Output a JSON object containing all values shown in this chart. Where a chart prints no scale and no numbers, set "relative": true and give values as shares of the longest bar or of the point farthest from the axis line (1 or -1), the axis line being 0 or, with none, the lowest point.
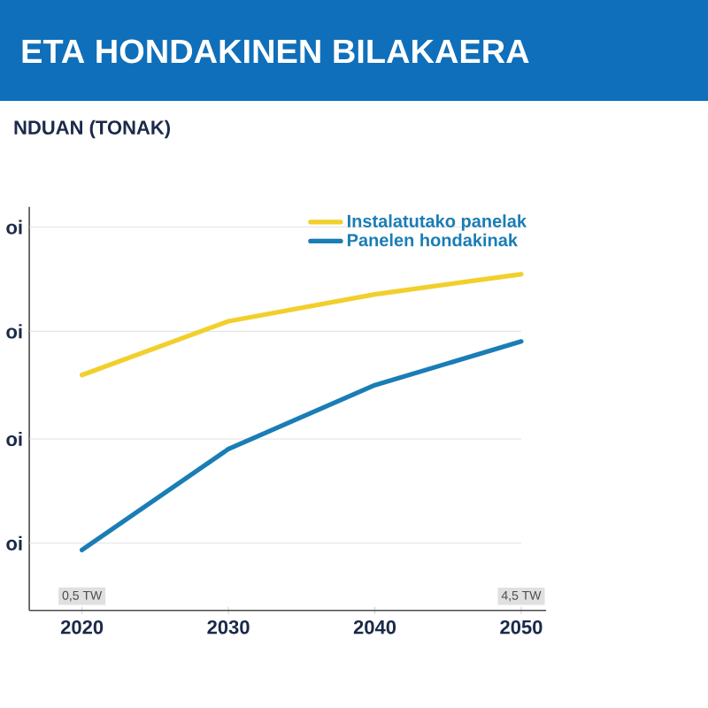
{
  "chart_data": {
    "type": "line",
    "title": "ETA HONDAKINEN BILAKAERA",
    "subtitle": "NDUAN (TONAK)",
    "relative": true,
    "categories": [
      "2020",
      "2030",
      "2040",
      "2050"
    ],
    "series": [
      {
        "name": "Instalatutako panelak",
        "color": "#f2cf2b",
        "values": [
          0.7,
          0.86,
          0.94,
          1
        ]
      },
      {
        "name": "Panelen hondakinak",
        "color": "#1a7db5",
        "values": [
          0.18,
          0.48,
          0.67,
          0.8
        ]
      }
    ],
    "ref_lines": [
      {
        "axis": "y",
        "value": 0.2,
        "label": "oi",
        "color": "#d9d9d9"
      },
      {
        "axis": "y",
        "value": 0.51,
        "label": "oi",
        "color": "#d9d9d9"
      },
      {
        "axis": "y",
        "value": 0.83,
        "label": "oi",
        "color": "#d9d9d9"
      },
      {
        "axis": "y",
        "value": 1.14,
        "label": "oi",
        "color": "#d9d9d9"
      }
    ],
    "annotations": [
      {
        "text": "0,5 TW",
        "x": "2020"
      },
      {
        "text": "4,5 TW",
        "x": "2050"
      }
    ],
    "legend": "top right",
    "marker": "none",
    "line_style": "solid"
  }
}
